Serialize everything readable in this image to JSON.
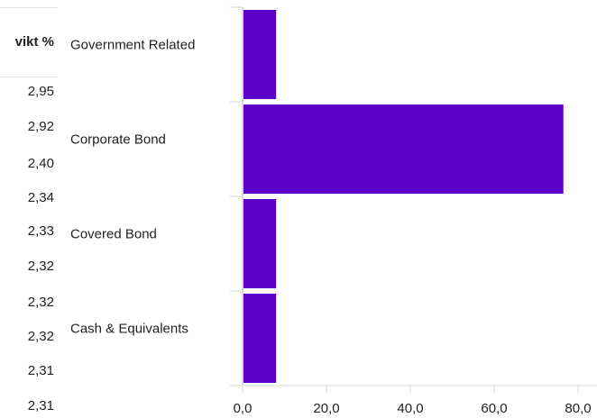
{
  "side_table": {
    "header": "vikt %",
    "values": [
      "2,95",
      "2,92",
      "2,40",
      "2,34",
      "2,33",
      "2,32",
      "2,32",
      "2,32",
      "2,31",
      "2,31"
    ]
  },
  "colors": {
    "bar": "#5c00cc",
    "axis": "#d7d7d7",
    "text": "#222222"
  },
  "chart_data": {
    "type": "bar",
    "orientation": "horizontal",
    "categories": [
      "Government Related",
      "Corporate Bond",
      "Covered Bond",
      "Cash & Equivalents"
    ],
    "values": [
      8,
      76.5,
      8,
      8
    ],
    "xlim": [
      0,
      80
    ],
    "x_ticks": [
      "0,0",
      "20,0",
      "40,0",
      "60,0",
      "80,0"
    ],
    "x_tick_values": [
      0,
      20,
      40,
      60,
      80
    ],
    "grid": false,
    "legend": "none"
  }
}
